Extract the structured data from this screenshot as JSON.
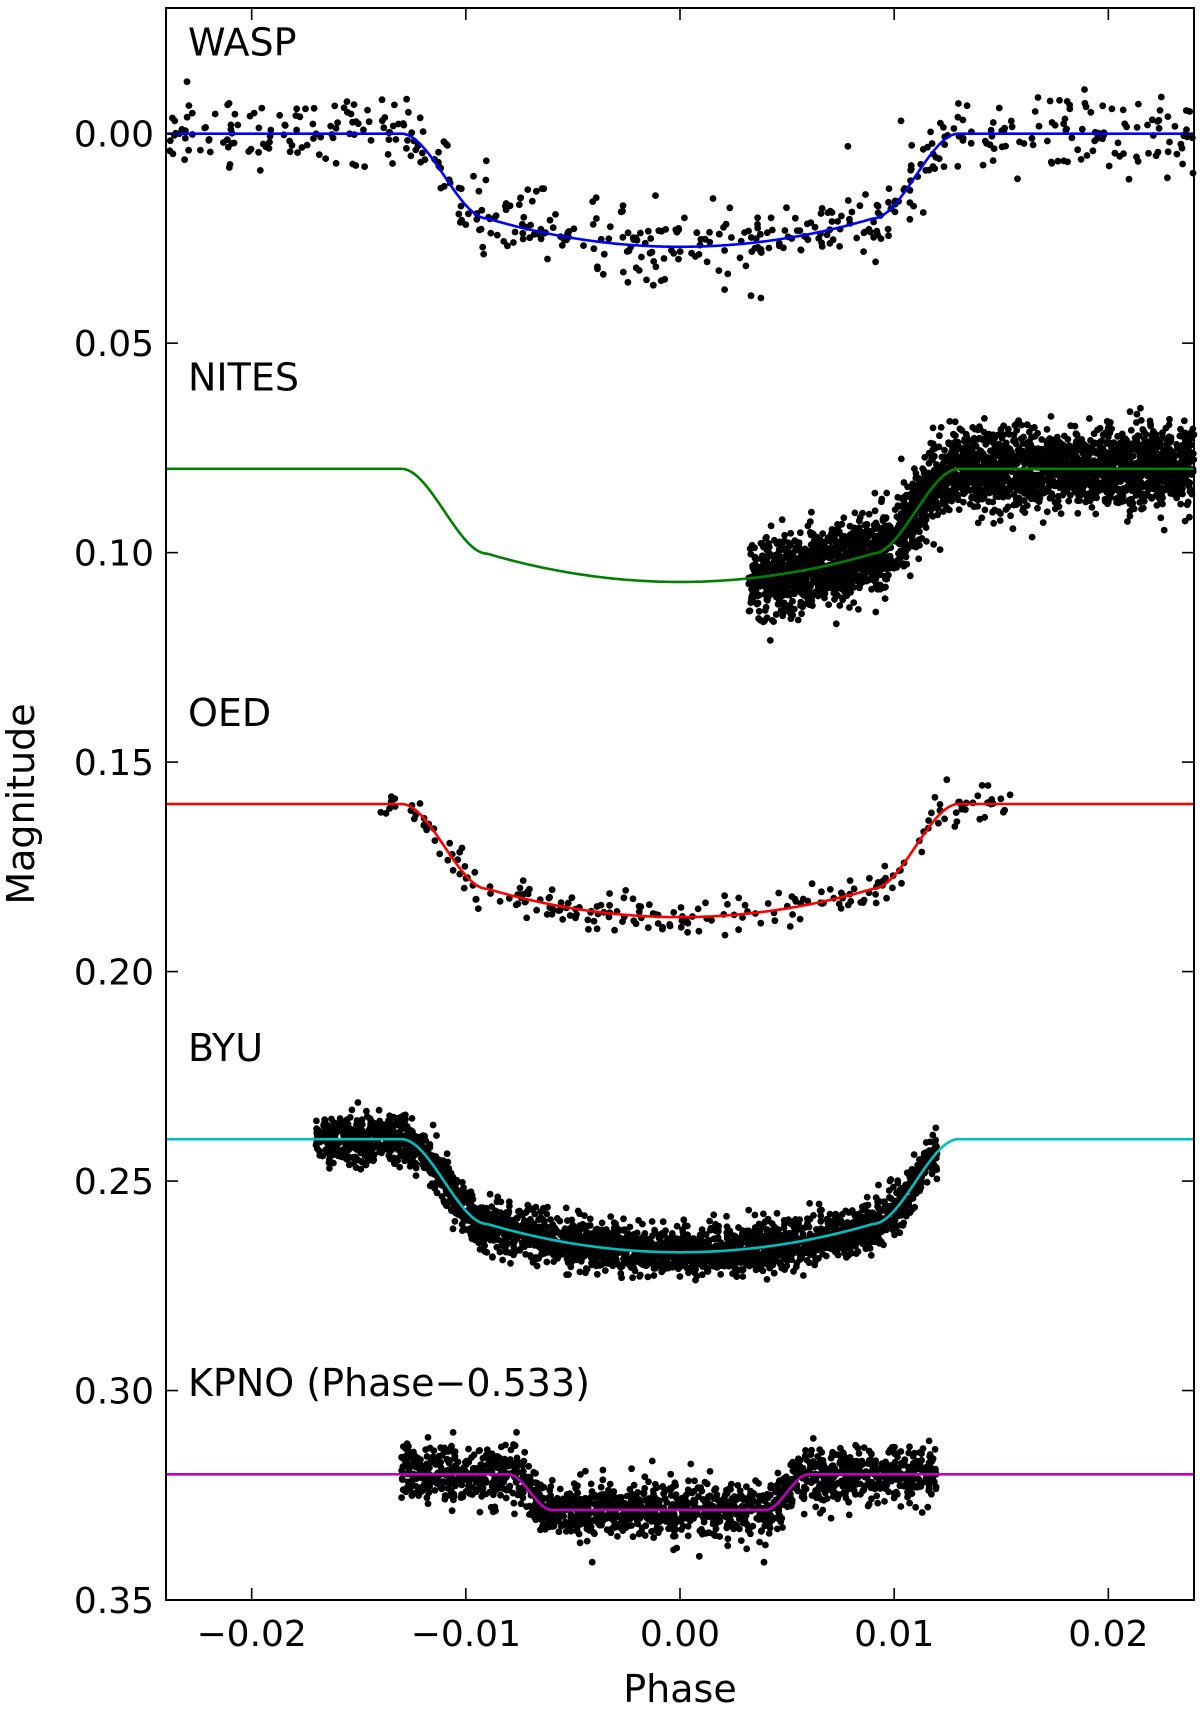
{
  "chart_data": {
    "type": "scatter",
    "title": "",
    "xlabel": "Phase",
    "ylabel": "Magnitude",
    "xlim": [
      -0.024,
      0.024
    ],
    "ylim": [
      0.35,
      -0.03
    ],
    "y_inverted": true,
    "grid": false,
    "x_ticks": [
      -0.02,
      -0.01,
      0.0,
      0.01,
      0.02
    ],
    "x_tick_labels": [
      "−0.02",
      "−0.01",
      "0.00",
      "0.01",
      "0.02"
    ],
    "y_ticks": [
      0.0,
      0.05,
      0.1,
      0.15,
      0.2,
      0.25,
      0.3,
      0.35
    ],
    "y_tick_labels": [
      "0.00",
      "0.05",
      "0.10",
      "0.15",
      "0.20",
      "0.25",
      "0.30",
      "0.35"
    ],
    "model": {
      "ingress_start": -0.013,
      "ingress_end": -0.009,
      "egress_start": 0.009,
      "egress_end": 0.013,
      "depth": 0.027,
      "limb_curvature": 0.25
    },
    "series": [
      {
        "name": "WASP",
        "label": "WASP",
        "label_magnitude": -0.022,
        "baseline": 0.0,
        "depth": 0.027,
        "color": "#0000ff",
        "data_range": [
          -0.024,
          0.024
        ],
        "n_points": 520,
        "scatter": 0.0045,
        "trend": 0.0,
        "bin_offset": 0.0
      },
      {
        "name": "NITES",
        "label": "NITES",
        "label_magnitude": 0.058,
        "baseline": 0.08,
        "depth": 0.027,
        "color": "#008000",
        "data_range": [
          0.0032,
          0.024
        ],
        "n_points": 3200,
        "scatter": 0.0045,
        "trend": -0.07,
        "bin_offset": 0.0
      },
      {
        "name": "OED",
        "label": "OED",
        "label_magnitude": 0.138,
        "baseline": 0.16,
        "depth": 0.027,
        "color": "#ff0000",
        "data_range": [
          -0.014,
          0.0155
        ],
        "n_points": 230,
        "scatter": 0.0022,
        "trend": 0.0,
        "bin_offset": 0.0
      },
      {
        "name": "BYU",
        "label": "BYU",
        "label_magnitude": 0.218,
        "baseline": 0.24,
        "depth": 0.027,
        "color": "#00bfbf",
        "data_range": [
          -0.017,
          0.012
        ],
        "n_points": 2800,
        "scatter": 0.0028,
        "trend": 0.0,
        "bin_offset": 0.0
      },
      {
        "name": "KPNO",
        "label": "KPNO (Phase−0.533)",
        "label_magnitude": 0.298,
        "baseline": 0.32,
        "depth": 0.0085,
        "color": "#bf00bf",
        "data_range": [
          -0.013,
          0.012
        ],
        "n_points": 1700,
        "scatter": 0.0033,
        "trend": 0.0,
        "bin_offset": 0.0,
        "model_override": {
          "ingress_start": -0.008,
          "ingress_end": -0.006,
          "egress_start": 0.004,
          "egress_end": 0.006,
          "limb_curvature": 0.0
        }
      }
    ]
  }
}
